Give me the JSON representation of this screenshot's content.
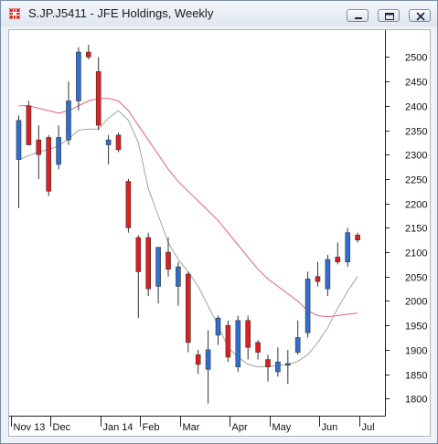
{
  "window": {
    "title": "S.JP.J5411 - JFE Holdings, Weekly",
    "buttons": [
      "minimize-button",
      "restore-button",
      "close-button"
    ],
    "icons": {
      "app": "grid-chart-icon",
      "minimize": "minimize-icon",
      "restore": "restore-icon",
      "close": "close-icon"
    }
  },
  "chart_data": {
    "type": "candlestick",
    "title": "S.JP.J5411 - JFE Holdings, Weekly",
    "x_tick_labels": [
      "Nov 13",
      "Dec",
      "Jan 14",
      "Feb",
      "Mar",
      "Apr",
      "May",
      "Jun",
      "Jul"
    ],
    "y_ticks": [
      1800,
      1850,
      1900,
      1950,
      2000,
      2050,
      2100,
      2150,
      2200,
      2250,
      2300,
      2350,
      2400,
      2450,
      2500
    ],
    "ylim": [
      1765,
      2555
    ],
    "y_axis_position": "right",
    "grid": false,
    "colors": {
      "up": "#2f6fd0",
      "down": "#dc2020",
      "ma_short": "#9aa89a",
      "ma_long": "#e05c8a",
      "wick": "#333333"
    },
    "candles": [
      {
        "o": 2290,
        "h": 2380,
        "l": 2190,
        "c": 2370
      },
      {
        "o": 2400,
        "h": 2410,
        "l": 2320,
        "c": 2320
      },
      {
        "o": 2330,
        "h": 2360,
        "l": 2250,
        "c": 2300
      },
      {
        "o": 2335,
        "h": 2340,
        "l": 2215,
        "c": 2225
      },
      {
        "o": 2280,
        "h": 2360,
        "l": 2270,
        "c": 2335
      },
      {
        "o": 2330,
        "h": 2450,
        "l": 2320,
        "c": 2410
      },
      {
        "o": 2410,
        "h": 2520,
        "l": 2390,
        "c": 2510
      },
      {
        "o": 2510,
        "h": 2525,
        "l": 2495,
        "c": 2500
      },
      {
        "o": 2470,
        "h": 2500,
        "l": 2350,
        "c": 2360
      },
      {
        "o": 2320,
        "h": 2340,
        "l": 2280,
        "c": 2330
      },
      {
        "o": 2340,
        "h": 2345,
        "l": 2305,
        "c": 2310
      },
      {
        "o": 2245,
        "h": 2250,
        "l": 2140,
        "c": 2150
      },
      {
        "o": 2130,
        "h": 2135,
        "l": 1965,
        "c": 2060
      },
      {
        "o": 2130,
        "h": 2140,
        "l": 2010,
        "c": 2025
      },
      {
        "o": 2030,
        "h": 2110,
        "l": 1995,
        "c": 2110
      },
      {
        "o": 2100,
        "h": 2130,
        "l": 2050,
        "c": 2065
      },
      {
        "o": 2030,
        "h": 2080,
        "l": 1990,
        "c": 2070
      },
      {
        "o": 2055,
        "h": 2060,
        "l": 1895,
        "c": 1915
      },
      {
        "o": 1890,
        "h": 1900,
        "l": 1850,
        "c": 1870
      },
      {
        "o": 1860,
        "h": 1940,
        "l": 1790,
        "c": 1900
      },
      {
        "o": 1930,
        "h": 1970,
        "l": 1910,
        "c": 1965
      },
      {
        "o": 1950,
        "h": 1960,
        "l": 1875,
        "c": 1885
      },
      {
        "o": 1865,
        "h": 1970,
        "l": 1855,
        "c": 1960
      },
      {
        "o": 1960,
        "h": 1970,
        "l": 1880,
        "c": 1905
      },
      {
        "o": 1915,
        "h": 1920,
        "l": 1880,
        "c": 1895
      },
      {
        "o": 1880,
        "h": 1890,
        "l": 1835,
        "c": 1865
      },
      {
        "o": 1855,
        "h": 1905,
        "l": 1845,
        "c": 1875
      },
      {
        "o": 1870,
        "h": 1900,
        "l": 1830,
        "c": 1872
      },
      {
        "o": 1895,
        "h": 1960,
        "l": 1890,
        "c": 1925
      },
      {
        "o": 1935,
        "h": 2060,
        "l": 1925,
        "c": 2045
      },
      {
        "o": 2050,
        "h": 2080,
        "l": 2030,
        "c": 2040
      },
      {
        "o": 2025,
        "h": 2095,
        "l": 2010,
        "c": 2085
      },
      {
        "o": 2090,
        "h": 2120,
        "l": 2075,
        "c": 2080
      },
      {
        "o": 2080,
        "h": 2150,
        "l": 2070,
        "c": 2140
      },
      {
        "o": 2135,
        "h": 2140,
        "l": 2120,
        "c": 2125
      }
    ],
    "ma_short": [
      2290,
      2298,
      2306,
      2310,
      2318,
      2332,
      2350,
      2352,
      2352,
      2375,
      2390,
      2370,
      2325,
      2230,
      2175,
      2120,
      2085,
      2060,
      2030,
      1990,
      1950,
      1905,
      1885,
      1870,
      1865,
      1866,
      1868,
      1870,
      1876,
      1890,
      1915,
      1945,
      1985,
      2020,
      2050
    ],
    "ma_long": [
      2400,
      2400,
      2395,
      2390,
      2385,
      2390,
      2400,
      2410,
      2415,
      2415,
      2410,
      2390,
      2360,
      2330,
      2300,
      2270,
      2245,
      2225,
      2205,
      2185,
      2165,
      2140,
      2115,
      2090,
      2065,
      2045,
      2030,
      2015,
      2000,
      1980,
      1970,
      1968,
      1970,
      1973,
      1975
    ]
  }
}
